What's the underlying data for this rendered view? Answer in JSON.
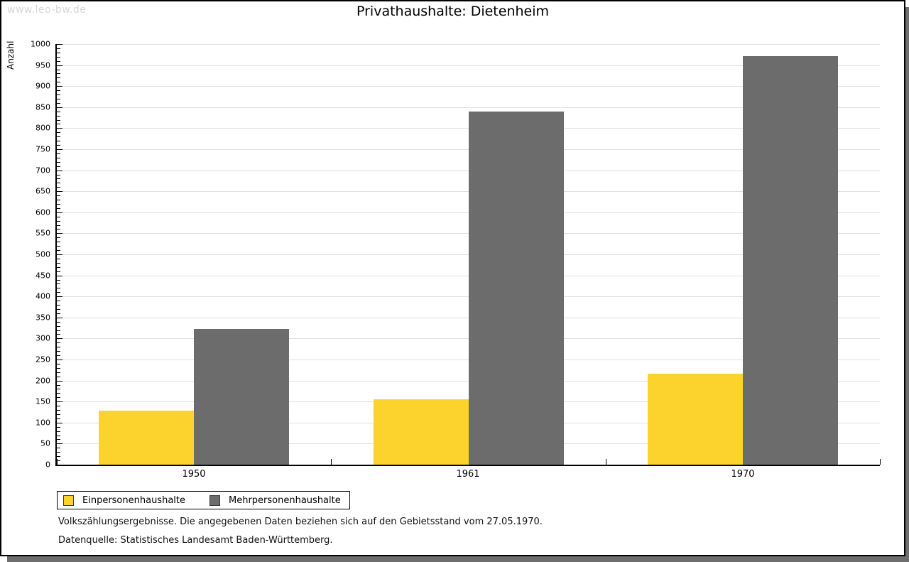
{
  "watermark": "www.leo-bw.de",
  "title": "Privathaushalte: Dietenheim",
  "y_axis_title": "Anzahl",
  "chart_data": {
    "type": "bar",
    "title": "Privathaushalte: Dietenheim",
    "xlabel": "",
    "ylabel": "Anzahl",
    "categories": [
      "1950",
      "1961",
      "1970"
    ],
    "series": [
      {
        "name": "Einpersonenhaushalte",
        "color": "#fcd22d",
        "values": [
          128,
          156,
          216
        ]
      },
      {
        "name": "Mehrpersonenhaushalte",
        "color": "#6c6c6c",
        "values": [
          322,
          839,
          972
        ]
      }
    ],
    "ylim": [
      0,
      1000
    ],
    "y_major_step": 50,
    "y_minor_step": 10,
    "grid": true,
    "legend_position": "bottom-left"
  },
  "footnotes": [
    "Volkszählungsergebnisse. Die angegebenen Daten beziehen sich auf den Gebietsstand vom 27.05.1970.",
    "Datenquelle: Statistisches Landesamt Baden-Württemberg."
  ],
  "colors": {
    "series_1": "#fcd22d",
    "series_2": "#6c6c6c",
    "gridline": "#e0e0e0",
    "axis": "#000000",
    "watermark": "#d6d6d6",
    "shadow": "#6e6e6e",
    "background": "#ffffff"
  }
}
